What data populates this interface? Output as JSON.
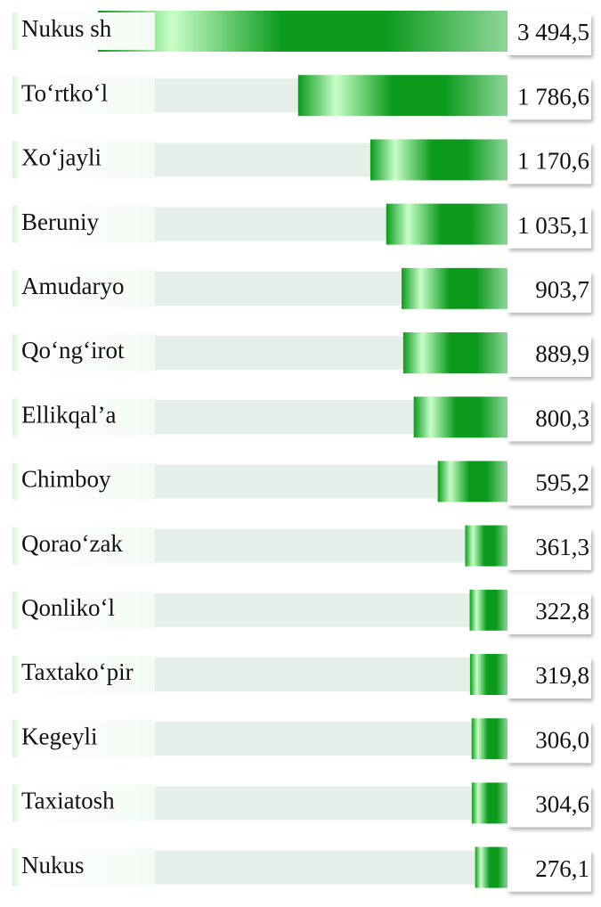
{
  "chart_data": {
    "type": "bar",
    "orientation": "horizontal",
    "categories": [
      "Nukus sh",
      "To‘rtko‘l",
      "Xo‘jayli",
      "Beruniy",
      "Amudaryo",
      "Qo‘ng‘irot",
      "Ellikqal’a",
      "Chimboy",
      "Qorao‘zak",
      "Qonliko‘l",
      "Taxtako‘pir",
      "Kegeyli",
      "Taxiatosh",
      "Nukus"
    ],
    "values": [
      3494.5,
      1786.6,
      1170.6,
      1035.1,
      903.7,
      889.9,
      800.3,
      595.2,
      361.3,
      322.8,
      319.8,
      306.0,
      304.6,
      276.1
    ],
    "value_labels": [
      "3 494,5",
      "1 786,6",
      "1 170,6",
      "1 035,1",
      "903,7",
      "889,9",
      "800,3",
      "595,2",
      "361,3",
      "322,8",
      "319,8",
      "306,0",
      "304,6",
      "276,1"
    ],
    "color": "#0b9a1c"
  }
}
